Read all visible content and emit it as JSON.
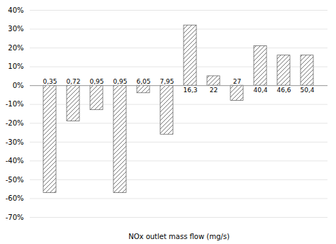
{
  "chart_data": {
    "type": "bar",
    "xlabel": "NOx outlet mass flow (mg/s)",
    "categories": [
      "0,35",
      "0,72",
      "0,95",
      "0,95",
      "6,05",
      "7,95",
      "16,3",
      "22",
      "27",
      "40,4",
      "46,6",
      "50,4"
    ],
    "values": [
      -57,
      -19,
      -13,
      -57,
      -4,
      -26,
      32,
      5,
      -8,
      21,
      16,
      16
    ],
    "color": "#555555",
    "ylim": [
      -70,
      40
    ],
    "yticks": [
      {
        "value": -70,
        "label": "-70%"
      },
      {
        "value": -60,
        "label": "-60%"
      },
      {
        "value": -50,
        "label": "-50%"
      },
      {
        "value": -40,
        "label": "-40%"
      },
      {
        "value": -30,
        "label": "-30%"
      },
      {
        "value": -20,
        "label": "-20%"
      },
      {
        "value": -10,
        "label": "-10%"
      },
      {
        "value": 0,
        "label": "0%"
      },
      {
        "value": 10,
        "label": "10%"
      },
      {
        "value": 20,
        "label": "20%"
      },
      {
        "value": 30,
        "label": "30%"
      },
      {
        "value": 40,
        "label": "40%"
      }
    ],
    "grid": true,
    "tick_labels": "y"
  }
}
